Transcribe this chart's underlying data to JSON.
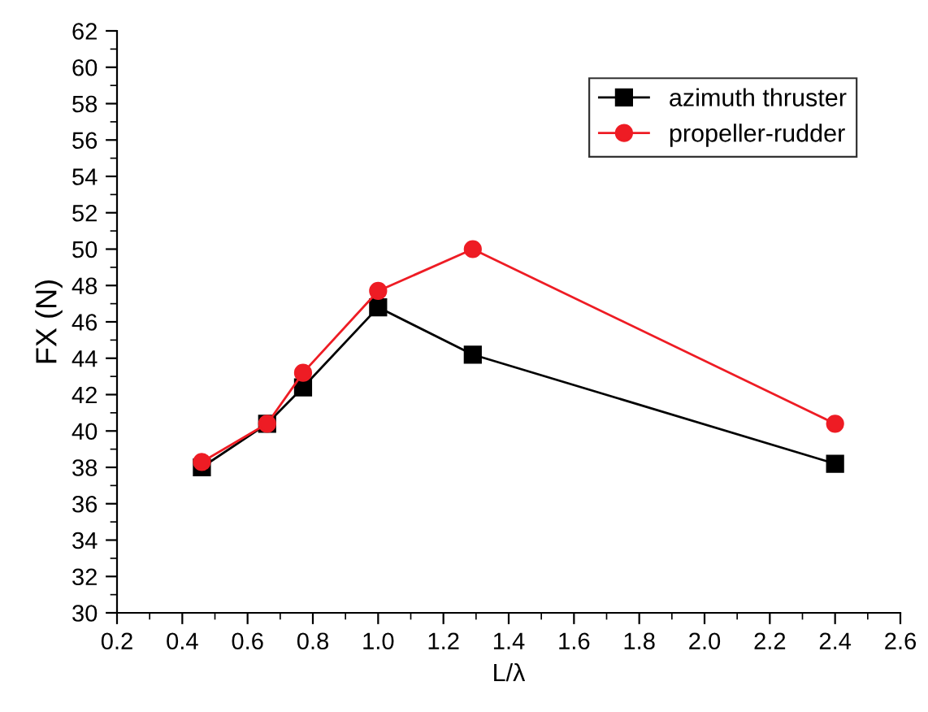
{
  "chart_data": {
    "type": "line",
    "xlabel": "L/λ",
    "ylabel": "FX (N)",
    "xlim": [
      0.2,
      2.6
    ],
    "xticks": [
      0.2,
      0.4,
      0.6,
      0.8,
      {
        "value": 1,
        "label": "1.0"
      },
      1.2,
      1.4,
      1.6,
      1.8,
      {
        "value": 2,
        "label": "2.0"
      },
      2.2,
      2.4,
      2.6
    ],
    "ylim": [
      30,
      62
    ],
    "yticks": [
      30,
      32,
      34,
      36,
      38,
      40,
      42,
      44,
      46,
      48,
      50,
      52,
      54,
      56,
      58,
      60,
      62
    ],
    "grid": false,
    "legend": "top right",
    "line_style": "solid",
    "series": [
      {
        "name": "azimuth thruster",
        "color": "#000000",
        "marker": "square",
        "x": [
          0.46,
          0.66,
          0.77,
          1.0,
          1.29,
          2.4
        ],
        "values": [
          38.0,
          40.4,
          42.4,
          46.8,
          44.2,
          38.2
        ]
      },
      {
        "name": "propeller-rudder",
        "color": "#ee1c24",
        "marker": "circle",
        "x": [
          0.46,
          0.66,
          0.77,
          1.0,
          1.29,
          2.4
        ],
        "values": [
          38.3,
          40.4,
          43.2,
          47.7,
          50.0,
          40.4
        ]
      }
    ]
  }
}
